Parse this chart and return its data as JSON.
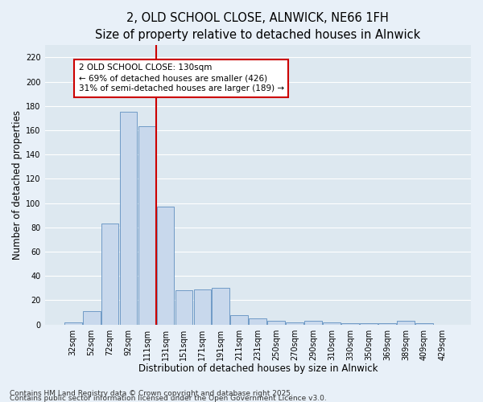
{
  "title_line1": "2, OLD SCHOOL CLOSE, ALNWICK, NE66 1FH",
  "title_line2": "Size of property relative to detached houses in Alnwick",
  "xlabel": "Distribution of detached houses by size in Alnwick",
  "ylabel": "Number of detached properties",
  "categories": [
    "32sqm",
    "52sqm",
    "72sqm",
    "92sqm",
    "111sqm",
    "131sqm",
    "151sqm",
    "171sqm",
    "191sqm",
    "211sqm",
    "231sqm",
    "250sqm",
    "270sqm",
    "290sqm",
    "310sqm",
    "330sqm",
    "350sqm",
    "369sqm",
    "389sqm",
    "409sqm",
    "429sqm"
  ],
  "bar_heights": [
    2,
    11,
    83,
    175,
    163,
    97,
    28,
    29,
    30,
    8,
    5,
    3,
    2,
    3,
    2,
    1,
    1,
    1,
    3,
    1,
    0
  ],
  "bar_color": "#c8d8ec",
  "bar_edge_color": "#6090c0",
  "vline_color": "#cc0000",
  "vline_x_index": 5,
  "annotation_line1": "2 OLD SCHOOL CLOSE: 130sqm",
  "annotation_line2": "← 69% of detached houses are smaller (426)",
  "annotation_line3": "31% of semi-detached houses are larger (189) →",
  "annotation_box_color": "#ffffff",
  "annotation_box_edge": "#cc0000",
  "ylim": [
    0,
    230
  ],
  "yticks": [
    0,
    20,
    40,
    60,
    80,
    100,
    120,
    140,
    160,
    180,
    200,
    220
  ],
  "plot_bg_color": "#dde8f0",
  "fig_bg_color": "#e8f0f8",
  "grid_color": "#ffffff",
  "footer_line1": "Contains HM Land Registry data © Crown copyright and database right 2025.",
  "footer_line2": "Contains public sector information licensed under the Open Government Licence v3.0.",
  "title_fontsize": 10.5,
  "subtitle_fontsize": 9.5,
  "axis_label_fontsize": 8.5,
  "tick_fontsize": 7,
  "annotation_fontsize": 7.5,
  "footer_fontsize": 6.5
}
